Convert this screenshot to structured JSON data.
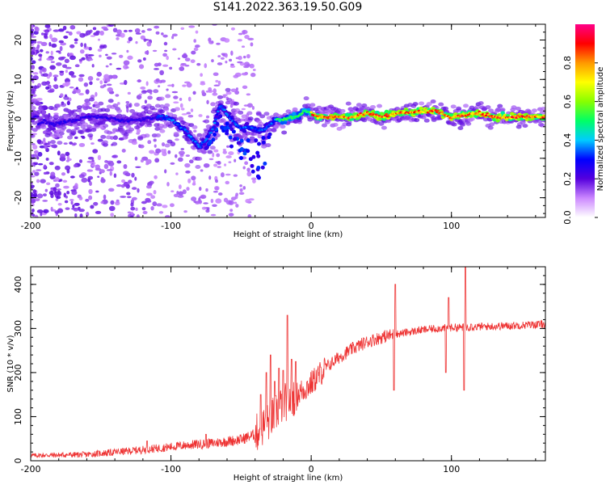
{
  "title": "S141.2022.363.19.50.G09",
  "chart_data": [
    {
      "type": "heatmap",
      "xlabel": "Height of straight line (km)",
      "ylabel": "Frequency (Hz)",
      "xlim": [
        -200,
        167
      ],
      "ylim": [
        -25,
        24
      ],
      "xticks": [
        -200,
        -100,
        0,
        100
      ],
      "yticks": [
        -20,
        -10,
        0,
        10,
        20
      ],
      "grid": false,
      "colorbar": {
        "label": "Normalized spectral amplitude",
        "range": [
          0,
          1
        ],
        "ticks": [
          0.0,
          0.2,
          0.4,
          0.6,
          0.8
        ],
        "tick_labels": [
          "0.0",
          "0.2",
          "0.4",
          "0.6",
          "0.8"
        ],
        "colors": [
          "#ffffff",
          "#cc88ff",
          "#5500dd",
          "#0000ff",
          "#00ccff",
          "#00ff66",
          "#88ff00",
          "#ffff00",
          "#ff9900",
          "#ff0000",
          "#ff0088"
        ]
      },
      "ridge": [
        [
          -195,
          -1.5
        ],
        [
          -190,
          -0.5
        ],
        [
          -185,
          -1.5
        ],
        [
          -180,
          -1.0
        ],
        [
          -170,
          -0.5
        ],
        [
          -160,
          0.5
        ],
        [
          -150,
          0.5
        ],
        [
          -140,
          0.0
        ],
        [
          -130,
          -0.5
        ],
        [
          -120,
          0.0
        ],
        [
          -110,
          0.5
        ],
        [
          -100,
          0.0
        ],
        [
          -95,
          -1.5
        ],
        [
          -90,
          -3.0
        ],
        [
          -85,
          -5.0
        ],
        [
          -80,
          -7.0
        ],
        [
          -75,
          -5.5
        ],
        [
          -70,
          -2.5
        ],
        [
          -65,
          3.5
        ],
        [
          -60,
          1.5
        ],
        [
          -55,
          -1.0
        ],
        [
          -50,
          -2.5
        ],
        [
          -45,
          -2.0
        ],
        [
          -40,
          -2.5
        ],
        [
          -35,
          -3.0
        ],
        [
          -30,
          -1.5
        ],
        [
          -25,
          0.0
        ],
        [
          -20,
          -0.5
        ],
        [
          -15,
          0.5
        ],
        [
          -10,
          0.5
        ],
        [
          -5,
          2.0
        ],
        [
          0,
          1.5
        ],
        [
          5,
          0.5
        ],
        [
          10,
          0.5
        ],
        [
          20,
          0.5
        ],
        [
          30,
          0.5
        ],
        [
          40,
          1.5
        ],
        [
          50,
          0.5
        ],
        [
          60,
          1.5
        ],
        [
          70,
          1.5
        ],
        [
          80,
          2.0
        ],
        [
          90,
          2.0
        ],
        [
          95,
          1.0
        ],
        [
          100,
          0.5
        ],
        [
          110,
          1.0
        ],
        [
          120,
          1.5
        ],
        [
          130,
          0.5
        ],
        [
          140,
          0.5
        ],
        [
          150,
          0.5
        ],
        [
          167,
          0.5
        ]
      ]
    },
    {
      "type": "line",
      "xlabel": "Height of straight line (km)",
      "ylabel": "SNR (10 * v/v)",
      "xlim": [
        -200,
        167
      ],
      "ylim": [
        0,
        440
      ],
      "xticks": [
        -200,
        -100,
        0,
        100
      ],
      "yticks": [
        0,
        100,
        200,
        300,
        400
      ],
      "grid": false,
      "line_color": "#ee3333",
      "baseline": [
        [
          -200,
          12
        ],
        [
          -160,
          14
        ],
        [
          -130,
          22
        ],
        [
          -110,
          28
        ],
        [
          -90,
          35
        ],
        [
          -70,
          40
        ],
        [
          -50,
          48
        ],
        [
          -40,
          60
        ],
        [
          -30,
          90
        ],
        [
          -20,
          130
        ],
        [
          -10,
          150
        ],
        [
          0,
          175
        ],
        [
          10,
          210
        ],
        [
          20,
          235
        ],
        [
          30,
          255
        ],
        [
          40,
          270
        ],
        [
          50,
          280
        ],
        [
          60,
          287
        ],
        [
          70,
          292
        ],
        [
          80,
          297
        ],
        [
          90,
          300
        ],
        [
          100,
          302
        ],
        [
          120,
          304
        ],
        [
          140,
          306
        ],
        [
          167,
          310
        ]
      ],
      "spikes": [
        [
          -117,
          45
        ],
        [
          -75,
          60
        ],
        [
          -36,
          150
        ],
        [
          -32,
          200
        ],
        [
          -29,
          240
        ],
        [
          -26,
          180
        ],
        [
          -23,
          210
        ],
        [
          -20,
          205
        ],
        [
          -17,
          330
        ],
        [
          -14,
          230
        ],
        [
          -11,
          225
        ],
        [
          60,
          400
        ],
        [
          59,
          160
        ],
        [
          98,
          370
        ],
        [
          96,
          200
        ],
        [
          110,
          440
        ],
        [
          109,
          160
        ],
        [
          114,
          310
        ]
      ]
    }
  ]
}
